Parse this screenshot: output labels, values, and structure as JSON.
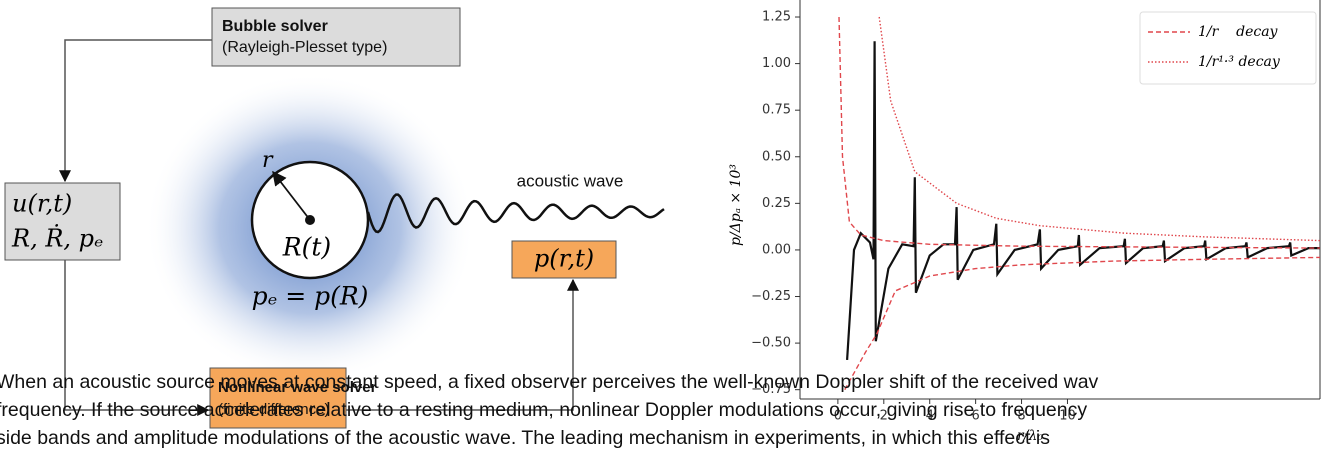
{
  "diagram": {
    "bubble_solver": {
      "title": "Bubble solver",
      "subtitle": "(Rayleigh-Plesset type)"
    },
    "input_box": {
      "line1": "u(r,t)",
      "line2": "R, Ṙ, pₑ"
    },
    "output_box": {
      "label": "p(r,t)"
    },
    "wave_solver": {
      "title": "Nonlinear wave solver",
      "subtitle": "(finite difference)"
    },
    "bubble": {
      "radius_label": "r",
      "center_label": "R(t)",
      "pressure_label": "pₑ = p(R)"
    },
    "wave_label": "acoustic wave"
  },
  "chart_data": {
    "type": "line",
    "x_label": "r/λ₀",
    "y_label": "p/Δpₐ × 10³",
    "xlim": [
      -1.65,
      21
    ],
    "ylim": [
      -0.8,
      1.3
    ],
    "xticks": [
      0,
      2,
      4,
      6,
      8,
      10
    ],
    "yticks": [
      {
        "value": -0.75,
        "label": "−0.75"
      },
      {
        "value": -0.5,
        "label": "−0.50"
      },
      {
        "value": -0.25,
        "label": "−0.25"
      },
      {
        "value": 0,
        "label": "0.00"
      },
      0.25,
      {
        "value": 0.5,
        "label": "0.50"
      },
      0.75,
      {
        "value": 1,
        "label": "1.00"
      },
      1.25
    ],
    "legend": "upper right",
    "series": [
      {
        "color": "#111111",
        "style": "solid",
        "x": [
          0.4,
          0.7,
          1.0,
          1.4,
          1.55,
          1.6,
          1.65,
          2.2,
          2.8,
          3.3,
          3.35,
          3.4,
          4.0,
          4.6,
          5.1,
          5.17,
          5.22,
          5.9,
          6.8,
          6.9,
          6.95,
          7.7,
          8.7,
          8.8,
          8.85,
          9.6,
          10.45,
          10.5,
          10.55,
          11.4,
          12.45,
          12.5,
          12.55,
          13.3,
          14.15,
          14.2,
          14.25,
          15.1,
          15.95,
          16.0,
          16.05,
          16.9,
          17.75,
          17.8,
          17.85,
          18.7,
          19.65,
          19.7,
          19.75,
          20.5,
          21
        ],
        "values": [
          -0.59,
          0.0,
          0.09,
          0.04,
          -0.05,
          1.12,
          -0.49,
          -0.1,
          0.03,
          0.02,
          0.39,
          -0.23,
          -0.03,
          0.03,
          0.03,
          0.23,
          -0.16,
          0.0,
          0.03,
          0.14,
          -0.13,
          0.0,
          0.03,
          0.11,
          -0.1,
          0.0,
          0.02,
          0.08,
          -0.08,
          0.01,
          0.02,
          0.06,
          -0.07,
          0.01,
          0.02,
          0.05,
          -0.06,
          0.01,
          0.02,
          0.05,
          -0.05,
          0.01,
          0.02,
          0.04,
          -0.04,
          0.01,
          0.02,
          0.04,
          -0.03,
          0.01,
          0.01
        ]
      },
      {
        "name": "1/r    decay",
        "color": "#e0474c",
        "style": "dashed",
        "x": [
          0.05,
          0.2,
          0.5,
          1,
          2,
          4,
          8,
          14,
          21
        ],
        "values": [
          1.25,
          0.5,
          0.15,
          0.08,
          0.05,
          0.03,
          0.02,
          0.015,
          0.01
        ]
      },
      {
        "color": "#e0474c",
        "style": "dashed",
        "x": [
          0.3,
          1.2,
          1.7,
          2.5,
          4,
          6,
          8,
          12,
          16,
          21
        ],
        "values": [
          -0.75,
          -0.55,
          -0.45,
          -0.22,
          -0.14,
          -0.1,
          -0.08,
          -0.06,
          -0.05,
          -0.04
        ]
      },
      {
        "name": "1/r¹·³ decay",
        "color": "#e0474c",
        "style": "dotted",
        "x": [
          1.8,
          2.3,
          3.35,
          5.17,
          6.9,
          8.8,
          12.5,
          16,
          21
        ],
        "values": [
          1.25,
          0.8,
          0.42,
          0.25,
          0.17,
          0.13,
          0.09,
          0.07,
          0.05
        ]
      }
    ]
  },
  "paragraph": {
    "lines": [
      "When an acoustic source moves at constant speed, a fixed observer perceives the well-known Doppler shift of the received wav",
      "frequency. If the source accelerates relative to a resting medium, nonlinear Doppler modulations occur, giving rise to frequency",
      "side bands and amplitude modulations of the acoustic wave. The leading mechanism in experiments, in which this effect is"
    ]
  }
}
